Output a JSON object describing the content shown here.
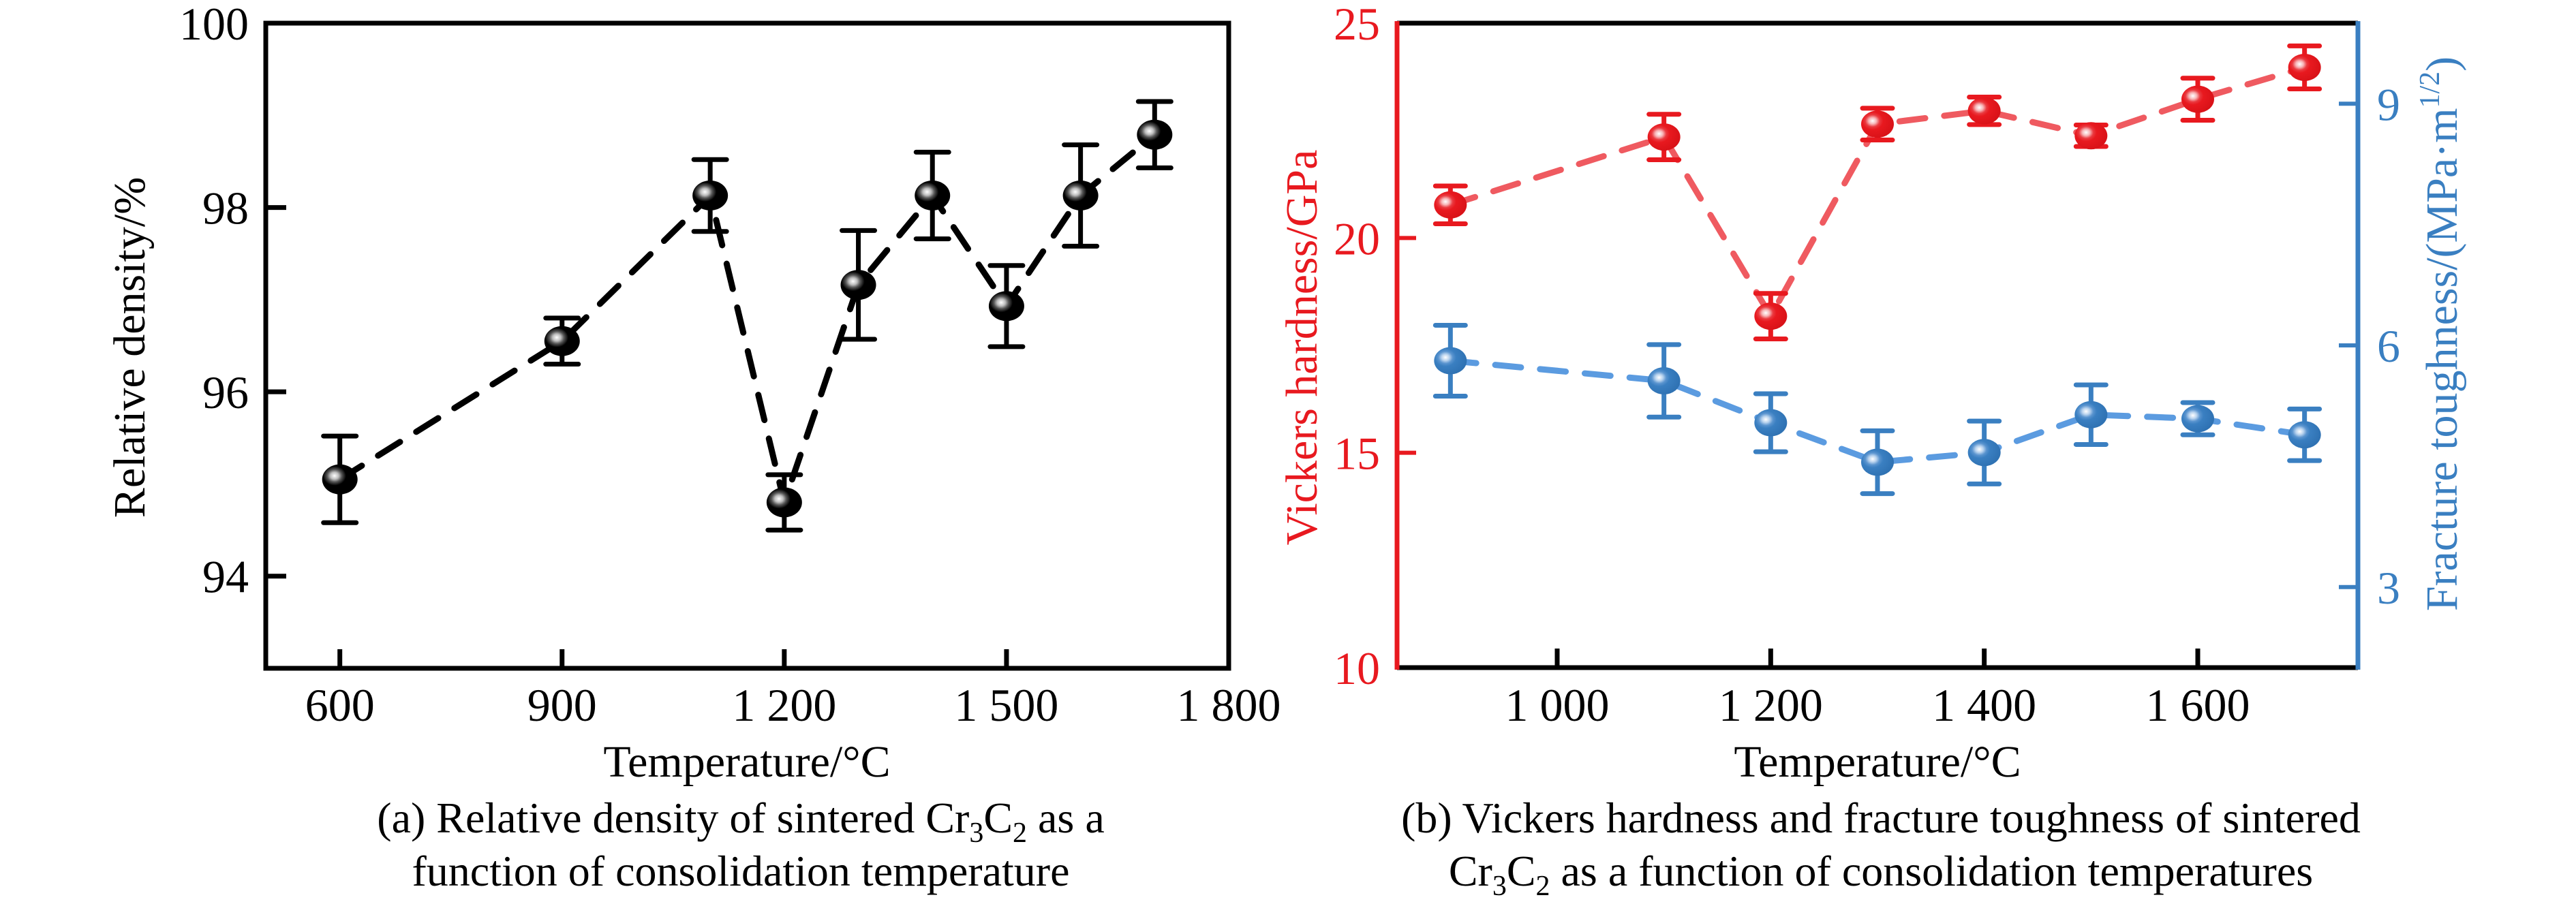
{
  "figure": {
    "panel_a": {
      "caption_line1_prefix": "(a) Relative density of sintered Cr",
      "caption_sub1": "3",
      "caption_mid": "C",
      "caption_sub2": "2",
      "caption_line1_suffix": " as a",
      "caption_line2": "function of consolidation temperature"
    },
    "panel_b": {
      "caption_line1": "(b) Vickers hardness and fracture toughness of sintered",
      "caption_line2_prefix": "Cr",
      "caption_sub1": "3",
      "caption_mid": "C",
      "caption_sub2": "2",
      "caption_line2_suffix": " as a function of consolidation temperatures"
    }
  },
  "colors": {
    "axis_black": "#000000",
    "hardness_red": "#e8191f",
    "hardness_line": "#ef5a60",
    "toughness_blue": "#3a7fc1",
    "toughness_line": "#5b9be0"
  },
  "chart_data": [
    {
      "type": "scatter",
      "title": "(a) Relative density of sintered Cr3C2 as a function of consolidation temperature",
      "xlabel": "Temperature/°C",
      "ylabel": "Relative density/%",
      "xlim": [
        500,
        1800
      ],
      "ylim": [
        93,
        100
      ],
      "xticks": [
        600,
        900,
        1200,
        1500,
        1800
      ],
      "xtick_labels": [
        "600",
        "900",
        "1 200",
        "1 500",
        "1 800"
      ],
      "yticks": [
        94,
        96,
        98,
        100
      ],
      "ytick_labels": [
        "94",
        "96",
        "98",
        "100"
      ],
      "grid": false,
      "line_style": "dashed",
      "series": [
        {
          "name": "Relative density",
          "color": "#000000",
          "x": [
            600,
            900,
            1100,
            1200,
            1300,
            1400,
            1500,
            1600,
            1700
          ],
          "y": [
            95.05,
            96.55,
            98.13,
            94.8,
            97.16,
            98.13,
            96.93,
            98.13,
            98.79
          ],
          "error": [
            0.47,
            0.25,
            0.39,
            0.3,
            0.59,
            0.47,
            0.44,
            0.55,
            0.36
          ]
        }
      ]
    },
    {
      "type": "scatter",
      "title": "(b) Vickers hardness and fracture toughness of sintered Cr3C2 as a function of consolidation temperatures",
      "xlabel": "Temperature/°C",
      "ylabel": "Vickers hardness/GPa",
      "ylabel_right": "Fracture toughness/(MPa·m1/2)",
      "ylabel_right_prefix": "Fracture toughness/(MPa·m",
      "ylabel_right_sup": "1/2",
      "ylabel_right_suffix": ")",
      "xlim": [
        850,
        1750
      ],
      "ylim": [
        10,
        25
      ],
      "ylim_right": [
        2,
        10
      ],
      "xticks": [
        1000,
        1200,
        1400,
        1600
      ],
      "xtick_labels": [
        "1 000",
        "1 200",
        "1 400",
        "1 600"
      ],
      "yticks": [
        10,
        15,
        20,
        25
      ],
      "ytick_labels": [
        "10",
        "15",
        "20",
        "25"
      ],
      "yticks_right": [
        3,
        6,
        9
      ],
      "ytick_labels_right": [
        "3",
        "6",
        "9"
      ],
      "grid": false,
      "line_style": "dashed",
      "series": [
        {
          "name": "Vickers hardness",
          "axis": "left",
          "color": "#e8191f",
          "x": [
            900,
            1100,
            1200,
            1300,
            1400,
            1500,
            1600,
            1700
          ],
          "y": [
            20.77,
            22.35,
            18.18,
            22.65,
            22.96,
            22.38,
            23.23,
            23.97
          ],
          "error": [
            0.44,
            0.53,
            0.53,
            0.37,
            0.32,
            0.25,
            0.49,
            0.5
          ]
        },
        {
          "name": "Fracture toughness",
          "axis": "right",
          "color": "#3a7fc1",
          "x": [
            900,
            1100,
            1200,
            1300,
            1400,
            1500,
            1600,
            1700
          ],
          "y": [
            5.81,
            5.56,
            5.04,
            4.55,
            4.67,
            5.14,
            5.09,
            4.89
          ],
          "error": [
            0.44,
            0.45,
            0.36,
            0.39,
            0.39,
            0.37,
            0.2,
            0.32
          ]
        }
      ]
    }
  ]
}
